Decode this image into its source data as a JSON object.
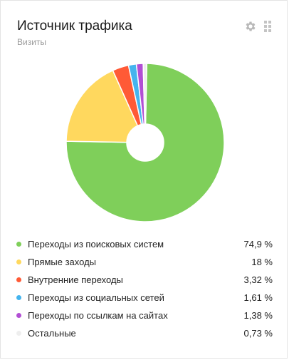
{
  "widget": {
    "title": "Источник трафика",
    "subtitle": "Визиты",
    "icons": {
      "settings": "gear-icon",
      "drag": "drag-handle-icon"
    }
  },
  "chart_data": {
    "type": "pie",
    "donut": true,
    "labels": [
      "Переходы из поисковых систем",
      "Прямые заходы",
      "Внутренние переходы",
      "Переходы из социальных сетей",
      "Переходы по ссылкам на сайтах",
      "Остальные"
    ],
    "values": [
      74.9,
      18,
      3.32,
      1.61,
      1.38,
      0.73
    ],
    "value_labels": [
      "74,9 %",
      "18 %",
      "3,32 %",
      "1,61 %",
      "1,38 %",
      "0,73 %"
    ],
    "colors": [
      "#7fcf5a",
      "#ffd85e",
      "#ff5a36",
      "#45b4ee",
      "#b24fd4",
      "#eeeeee"
    ],
    "legend_placement": "bottom"
  }
}
